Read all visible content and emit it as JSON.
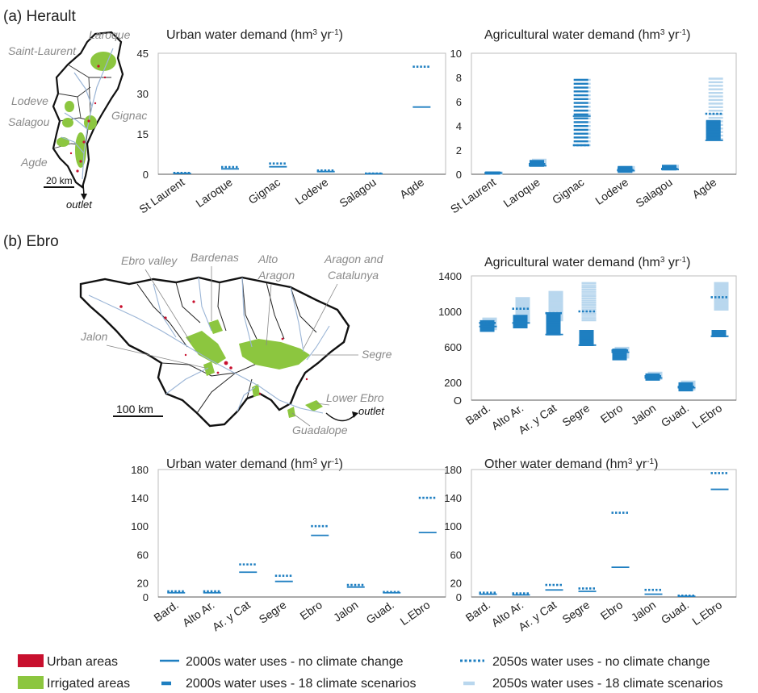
{
  "panels": {
    "a": "(a) Herault",
    "b": "(b) Ebro"
  },
  "colors": {
    "blue": "#1f7fc1",
    "light_blue": "#b9d7ee",
    "urban_red": "#c8102e",
    "irrigated_green": "#8cc63f",
    "river_blue": "#9bb5d6"
  },
  "maps": {
    "herault": {
      "labels": [
        "Laroque",
        "Saint-Laurent",
        "Lodeve",
        "Gignac",
        "Salagou",
        "Agde"
      ],
      "scale": "20 km",
      "outlet": "outlet"
    },
    "ebro": {
      "labels": [
        "Ebro valley",
        "Bardenas",
        "Alto",
        "Aragon",
        "Aragon and",
        "Catalunya",
        "Jalon",
        "Segre",
        "Lower Ebro",
        "outlet",
        "Guadalope"
      ],
      "scale": "100 km"
    }
  },
  "legend": {
    "urban": "Urban areas",
    "irrigated": "Irrigated areas",
    "l2000_nocc": "2000s water uses - no climate change",
    "l2000_cc": "2000s water uses - 18 climate scenarios",
    "l2050_nocc": "2050s water uses - no climate change",
    "l2050_cc": "2050s water uses - 18 climate scenarios"
  },
  "chart_data": [
    {
      "id": "herault-urban",
      "type": "scatter",
      "title_main": "Urban water demand (hm",
      "title_sup": "3",
      "title_mid": " yr",
      "title_sup2": "-1",
      "title_end": ")",
      "categories": [
        "St Laurent",
        "Laroque",
        "Gignac",
        "Lodeve",
        "Salagou",
        "Agde"
      ],
      "ylim": [
        0,
        45
      ],
      "yticks": [
        "0",
        "15",
        "30",
        "45"
      ],
      "series": [
        {
          "name": "2000s water uses - no climate change",
          "values": [
            0.3,
            2.0,
            2.8,
            1.0,
            0.2,
            25.0
          ]
        },
        {
          "name": "2050s water uses - no climate change",
          "values": [
            0.5,
            2.7,
            4.0,
            1.4,
            0.3,
            40.0
          ]
        }
      ]
    },
    {
      "id": "herault-agri",
      "type": "scatter",
      "title_main": "Agricultural water demand (hm",
      "title_sup": "3",
      "title_mid": " yr",
      "title_sup2": "-1",
      "title_end": ")",
      "categories": [
        "St Laurent",
        "Laroque",
        "Gignac",
        "Lodeve",
        "Salagou",
        "Agde"
      ],
      "ylim": [
        0,
        10
      ],
      "yticks": [
        "0",
        "2",
        "4",
        "6",
        "8",
        "10"
      ],
      "series": [
        {
          "name": "2000s water uses - no climate change",
          "values": [
            0.1,
            0.7,
            4.8,
            0.3,
            0.4,
            2.8
          ]
        },
        {
          "name": "2050s water uses - no climate change",
          "values": [
            0.12,
            0.85,
            2.4,
            0.35,
            0.45,
            5.0
          ]
        }
      ],
      "ranges_2000_cc": [
        [
          0.05,
          0.15
        ],
        [
          0.7,
          1.1
        ],
        [
          2.4,
          7.8
        ],
        [
          0.2,
          0.6
        ],
        [
          0.4,
          0.7
        ],
        [
          2.9,
          4.4
        ]
      ],
      "ranges_2050_cc": [
        [
          0.05,
          0.15
        ],
        [
          0.75,
          1.2
        ],
        [
          2.4,
          7.8
        ],
        [
          0.25,
          0.6
        ],
        [
          0.4,
          0.7
        ],
        [
          2.9,
          7.9
        ]
      ]
    },
    {
      "id": "ebro-agri",
      "type": "scatter",
      "title_main": "Agricultural water demand (hm",
      "title_sup": "3",
      "title_mid": " yr",
      "title_sup2": "-1",
      "title_end": ")",
      "categories": [
        "Bard.",
        "Alto Ar.",
        "Ar. y Cat",
        "Segre",
        "Ebro",
        "Jalon",
        "Guad.",
        "L.Ebro"
      ],
      "ylim": [
        0,
        1400
      ],
      "yticks": [
        "O",
        "200",
        "600",
        "1000",
        "1400"
      ],
      "ytick_values": [
        0,
        200,
        600,
        1000,
        1400
      ],
      "series": [
        {
          "name": "2000s water uses - no climate change",
          "values": [
            830,
            870,
            740,
            620,
            540,
            250,
            140,
            720
          ]
        },
        {
          "name": "2050s water uses - no climate change",
          "values": [
            870,
            1030,
            980,
            1000,
            560,
            270,
            150,
            1160
          ]
        }
      ],
      "ranges_2000_cc": [
        [
          780,
          890
        ],
        [
          820,
          950
        ],
        [
          740,
          980
        ],
        [
          620,
          780
        ],
        [
          460,
          570
        ],
        [
          230,
          290
        ],
        [
          110,
          190
        ],
        [
          720,
          780
        ]
      ],
      "ranges_2050_cc": [
        [
          800,
          920
        ],
        [
          880,
          1150
        ],
        [
          900,
          1220
        ],
        [
          900,
          1320
        ],
        [
          480,
          590
        ],
        [
          240,
          310
        ],
        [
          120,
          210
        ],
        [
          1020,
          1320
        ]
      ]
    },
    {
      "id": "ebro-urban",
      "type": "scatter",
      "title_main": "Urban water demand (hm",
      "title_sup": "3",
      "title_mid": " yr",
      "title_sup2": "-1",
      "title_end": ")",
      "categories": [
        "Bard.",
        "Alto Ar.",
        "Ar. y Cat",
        "Segre",
        "Ebro",
        "Jalon",
        "Guad.",
        "L.Ebro"
      ],
      "ylim": [
        0,
        180
      ],
      "yticks": [
        "0",
        "20",
        "60",
        "100",
        "140",
        "180"
      ],
      "ytick_values": [
        0,
        20,
        60,
        100,
        140,
        180
      ],
      "series": [
        {
          "name": "2000s water uses - no climate change",
          "values": [
            6,
            6,
            35,
            22,
            87,
            14,
            6,
            91
          ]
        },
        {
          "name": "2050s water uses - no climate change",
          "values": [
            8,
            8,
            46,
            30,
            100,
            17,
            7,
            140
          ]
        }
      ]
    },
    {
      "id": "ebro-other",
      "type": "scatter",
      "title_main": "Other water demand (hm",
      "title_sup": "3",
      "title_mid": " yr",
      "title_sup2": "-1",
      "title_end": ")",
      "categories": [
        "Bard.",
        "Alto Ar.",
        "Ar. y Cat",
        "Segre",
        "Ebro",
        "Jalon",
        "Guad.",
        "L.Ebro"
      ],
      "ylim": [
        0,
        180
      ],
      "yticks": [
        "0",
        "20",
        "60",
        "100",
        "140",
        "180"
      ],
      "ytick_values": [
        0,
        20,
        60,
        100,
        140,
        180
      ],
      "series": [
        {
          "name": "2000s water uses - no climate change",
          "values": [
            4,
            3,
            10,
            8,
            42,
            4,
            1,
            152
          ]
        },
        {
          "name": "2050s water uses - no climate change",
          "values": [
            6,
            5,
            17,
            12,
            119,
            10,
            2,
            175
          ]
        }
      ]
    }
  ]
}
